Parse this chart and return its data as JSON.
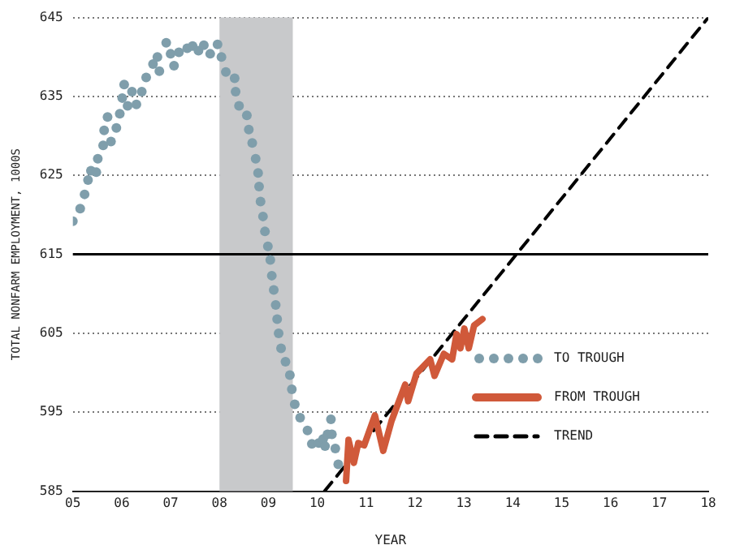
{
  "chart_data": {
    "type": "line",
    "xlabel": "YEAR",
    "ylabel": "TOTAL NONFARM EMPLOYMENT, 1000S",
    "xlim": [
      2005,
      2018
    ],
    "ylim": [
      585,
      645
    ],
    "xticks": [
      {
        "value": 2005,
        "label": "05"
      },
      {
        "value": 2006,
        "label": "06"
      },
      {
        "value": 2007,
        "label": "07"
      },
      {
        "value": 2008,
        "label": "08"
      },
      {
        "value": 2009,
        "label": "09"
      },
      {
        "value": 2010,
        "label": "10"
      },
      {
        "value": 2011,
        "label": "11"
      },
      {
        "value": 2012,
        "label": "12"
      },
      {
        "value": 2013,
        "label": "13"
      },
      {
        "value": 2014,
        "label": "14"
      },
      {
        "value": 2015,
        "label": "15"
      },
      {
        "value": 2016,
        "label": "16"
      },
      {
        "value": 2017,
        "label": "17"
      },
      {
        "value": 2018,
        "label": "18"
      }
    ],
    "yticks": [
      585,
      595,
      605,
      615,
      625,
      635,
      645
    ],
    "grid": "y",
    "legend": "right",
    "ref_lines": [
      {
        "axis": "y",
        "value": 615,
        "color": "#000000",
        "line_style": "solid"
      }
    ],
    "bands": [
      {
        "axis": "x",
        "from": 2008,
        "to": 2009.5,
        "color": "#c8c9cb"
      }
    ],
    "series": [
      {
        "name": "TO TROUGH",
        "type": "scatter",
        "color": "#7f9eab",
        "marker": "circle",
        "x": [
          2005,
          2005.15,
          2005.24,
          2005.31,
          2005.37,
          2005.48,
          2005.51,
          2005.62,
          2005.64,
          2005.71,
          2005.78,
          2005.89,
          2005.96,
          2006.01,
          2006.05,
          2006.12,
          2006.21,
          2006.3,
          2006.41,
          2006.5,
          2006.64,
          2006.73,
          2006.77,
          2006.91,
          2007,
          2007.07,
          2007.17,
          2007.34,
          2007.45,
          2007.57,
          2007.68,
          2007.81,
          2007.96,
          2008.04,
          2008.13,
          2008.31,
          2008.33,
          2008.4,
          2008.56,
          2008.6,
          2008.67,
          2008.74,
          2008.79,
          2008.81,
          2008.84,
          2008.89,
          2008.93,
          2008.99,
          2009.04,
          2009.07,
          2009.11,
          2009.15,
          2009.18,
          2009.21,
          2009.26,
          2009.35,
          2009.44,
          2009.48,
          2009.54,
          2009.65,
          2009.8,
          2009.89,
          2010.03,
          2010.12,
          2010.16,
          2010.21,
          2010.28,
          2010.3,
          2010.37,
          2010.43
        ],
        "values": [
          619.2,
          620.8,
          622.6,
          624.4,
          625.6,
          625.4,
          627.1,
          628.8,
          630.7,
          632.4,
          629.3,
          631,
          632.8,
          634.8,
          636.5,
          633.8,
          635.6,
          634,
          635.6,
          637.4,
          639.1,
          640,
          638.2,
          641.8,
          640.4,
          638.9,
          640.6,
          641.1,
          641.4,
          640.8,
          641.5,
          640.4,
          641.6,
          640,
          638.1,
          637.3,
          635.6,
          633.8,
          632.6,
          630.8,
          629.1,
          627.1,
          625.3,
          623.6,
          621.7,
          619.8,
          617.9,
          616,
          614.3,
          612.3,
          610.5,
          608.6,
          606.8,
          605,
          603.1,
          601.4,
          599.7,
          597.9,
          596,
          594.3,
          592.7,
          591,
          591.1,
          591.6,
          590.7,
          592.2,
          594.1,
          592.2,
          590.4,
          588.4
        ]
      },
      {
        "name": "FROM TROUGH",
        "type": "line",
        "color": "#d0593a",
        "marker": "none",
        "line_style": "solid",
        "x": [
          2010.59,
          2010.64,
          2010.75,
          2010.84,
          2010.96,
          2011.18,
          2011.35,
          2011.52,
          2011.8,
          2011.86,
          2012.03,
          2012.31,
          2012.4,
          2012.59,
          2012.76,
          2012.85,
          2012.93,
          2013.01,
          2013.1,
          2013.21,
          2013.38
        ],
        "values": [
          586.3,
          591.5,
          588.6,
          591.1,
          590.8,
          594.6,
          590.1,
          593.9,
          598.5,
          596.4,
          599.9,
          601.7,
          599.6,
          602.4,
          601.7,
          604.9,
          603.1,
          605.6,
          603.1,
          606,
          606.8
        ]
      },
      {
        "name": "TREND",
        "type": "line",
        "color": "#000000",
        "marker": "none",
        "line_style": "dashed",
        "x": [
          2010.15,
          2018
        ],
        "values": [
          585,
          645
        ]
      }
    ]
  }
}
